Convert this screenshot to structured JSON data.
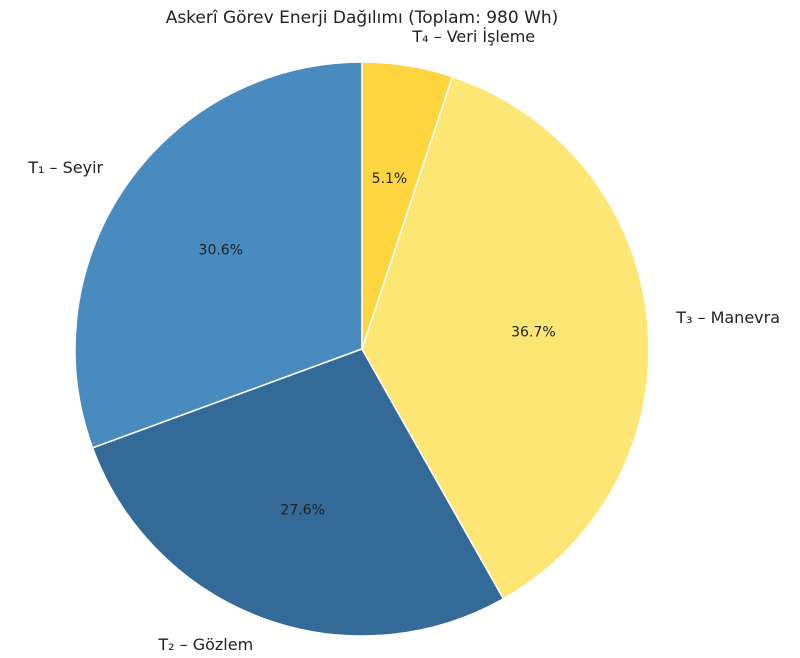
{
  "chart_data": {
    "type": "pie",
    "title": "Askerî Görev Enerji Dağılımı (Toplam: 980 Wh)",
    "categories": [
      "T₁ – Seyir",
      "T₂ – Gözlem",
      "T₃ – Manevra",
      "T₄ – Veri İşleme"
    ],
    "values": [
      30.6,
      27.6,
      36.7,
      5.1
    ],
    "value_labels": [
      "30.6%",
      "27.6%",
      "36.7%",
      "5.1%"
    ],
    "colors": [
      "#4a8bbf",
      "#336a98",
      "#fee675",
      "#fed43f"
    ]
  }
}
